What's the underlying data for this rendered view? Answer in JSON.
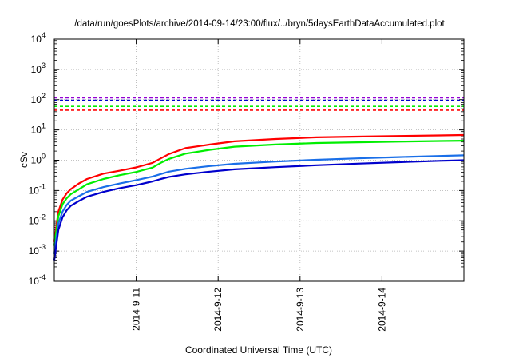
{
  "chart_data": {
    "type": "line",
    "title": "/data/run/goesPlots/archive/2014-09-14/23:00/flux/../bryn/5daysEarthDataAccumulated.plot",
    "xlabel": "Coordinated Universal Time (UTC)",
    "ylabel": "cSv",
    "xlim": [
      "2014-09-10 00:00",
      "2014-09-15 00:00"
    ],
    "ylim": [
      0.0001,
      10000
    ],
    "yscale": "log",
    "grid": true,
    "x_ticks": [
      "2014-9-11",
      "2014-9-12",
      "2014-9-13",
      "2014-9-14"
    ],
    "y_ticks": [
      {
        "value": 0.0001,
        "base": "10",
        "exp": "-4"
      },
      {
        "value": 0.001,
        "base": "10",
        "exp": "-3"
      },
      {
        "value": 0.01,
        "base": "10",
        "exp": "-2"
      },
      {
        "value": 0.1,
        "base": "10",
        "exp": "-1"
      },
      {
        "value": 1,
        "base": "10",
        "exp": "0"
      },
      {
        "value": 10,
        "base": "10",
        "exp": "1"
      },
      {
        "value": 100,
        "base": "10",
        "exp": "2"
      },
      {
        "value": 1000,
        "base": "10",
        "exp": "3"
      },
      {
        "value": 10000,
        "base": "10",
        "exp": "4"
      }
    ],
    "series": [
      {
        "color": "#ff0000",
        "style": "solid",
        "x": [
          "2014-09-10 00:00",
          "2014-09-10 01:12",
          "2014-09-10 02:24",
          "2014-09-10 03:36",
          "2014-09-10 04:48",
          "2014-09-10 07:12",
          "2014-09-10 09:36",
          "2014-09-10 14:24",
          "2014-09-10 19:12",
          "2014-09-11 00:00",
          "2014-09-11 04:48",
          "2014-09-11 07:12",
          "2014-09-11 09:36",
          "2014-09-11 14:24",
          "2014-09-11 21:36",
          "2014-09-12 04:48",
          "2014-09-12 16:48",
          "2014-09-13 04:48",
          "2014-09-13 16:48",
          "2014-09-14 04:48",
          "2014-09-14 16:48",
          "2014-09-15 00:00"
        ],
        "values": [
          0.002,
          0.02,
          0.05,
          0.08,
          0.11,
          0.17,
          0.24,
          0.36,
          0.45,
          0.58,
          0.82,
          1.15,
          1.6,
          2.5,
          3.3,
          4.2,
          5.0,
          5.7,
          6.0,
          6.3,
          6.6,
          6.8
        ]
      },
      {
        "color": "#00ee00",
        "style": "solid",
        "x": [
          "2014-09-10 00:00",
          "2014-09-10 01:12",
          "2014-09-10 02:24",
          "2014-09-10 03:36",
          "2014-09-10 04:48",
          "2014-09-10 07:12",
          "2014-09-10 09:36",
          "2014-09-10 14:24",
          "2014-09-10 19:12",
          "2014-09-11 00:00",
          "2014-09-11 04:48",
          "2014-09-11 07:12",
          "2014-09-11 09:36",
          "2014-09-11 14:24",
          "2014-09-11 21:36",
          "2014-09-12 04:48",
          "2014-09-12 16:48",
          "2014-09-13 04:48",
          "2014-09-13 16:48",
          "2014-09-14 04:48",
          "2014-09-14 16:48",
          "2014-09-15 00:00"
        ],
        "values": [
          0.0015,
          0.014,
          0.035,
          0.055,
          0.075,
          0.11,
          0.16,
          0.24,
          0.32,
          0.41,
          0.57,
          0.82,
          1.1,
          1.65,
          2.2,
          2.8,
          3.3,
          3.7,
          3.9,
          4.1,
          4.3,
          4.4
        ]
      },
      {
        "color": "#1a6fe8",
        "style": "solid",
        "x": [
          "2014-09-10 00:00",
          "2014-09-10 01:12",
          "2014-09-10 02:24",
          "2014-09-10 03:36",
          "2014-09-10 04:48",
          "2014-09-10 07:12",
          "2014-09-10 09:36",
          "2014-09-10 14:24",
          "2014-09-10 19:12",
          "2014-09-11 00:00",
          "2014-09-11 04:48",
          "2014-09-11 07:12",
          "2014-09-11 09:36",
          "2014-09-11 14:24",
          "2014-09-11 21:36",
          "2014-09-12 04:48",
          "2014-09-12 16:48",
          "2014-09-13 04:48",
          "2014-09-13 16:48",
          "2014-09-14 04:48",
          "2014-09-14 16:48",
          "2014-09-15 00:00"
        ],
        "values": [
          0.0008,
          0.008,
          0.02,
          0.033,
          0.046,
          0.065,
          0.09,
          0.13,
          0.17,
          0.22,
          0.29,
          0.35,
          0.42,
          0.52,
          0.64,
          0.76,
          0.9,
          1.03,
          1.15,
          1.27,
          1.38,
          1.45
        ]
      },
      {
        "color": "#0000cc",
        "style": "solid",
        "x": [
          "2014-09-10 00:00",
          "2014-09-10 01:12",
          "2014-09-10 02:24",
          "2014-09-10 03:36",
          "2014-09-10 04:48",
          "2014-09-10 07:12",
          "2014-09-10 09:36",
          "2014-09-10 14:24",
          "2014-09-10 19:12",
          "2014-09-11 00:00",
          "2014-09-11 04:48",
          "2014-09-11 07:12",
          "2014-09-11 09:36",
          "2014-09-11 14:24",
          "2014-09-11 21:36",
          "2014-09-12 04:48",
          "2014-09-12 16:48",
          "2014-09-13 04:48",
          "2014-09-13 16:48",
          "2014-09-14 04:48",
          "2014-09-14 16:48",
          "2014-09-15 00:00"
        ],
        "values": [
          0.0005,
          0.005,
          0.013,
          0.022,
          0.031,
          0.045,
          0.062,
          0.09,
          0.12,
          0.15,
          0.2,
          0.24,
          0.28,
          0.34,
          0.42,
          0.5,
          0.59,
          0.68,
          0.77,
          0.86,
          0.95,
          1.0
        ]
      },
      {
        "color": "#ff0000",
        "style": "dashed",
        "x": [
          "2014-09-10 00:00",
          "2014-09-15 00:00"
        ],
        "values": [
          45,
          45
        ]
      },
      {
        "color": "#00ee00",
        "style": "dashed",
        "x": [
          "2014-09-10 00:00",
          "2014-09-15 00:00"
        ],
        "values": [
          60,
          60
        ]
      },
      {
        "color": "#0000cc",
        "style": "dashed",
        "x": [
          "2014-09-10 00:00",
          "2014-09-15 00:00"
        ],
        "values": [
          95,
          95
        ]
      },
      {
        "color": "#9400d3",
        "style": "dashed",
        "x": [
          "2014-09-10 00:00",
          "2014-09-15 00:00"
        ],
        "values": [
          115,
          115
        ]
      }
    ]
  }
}
